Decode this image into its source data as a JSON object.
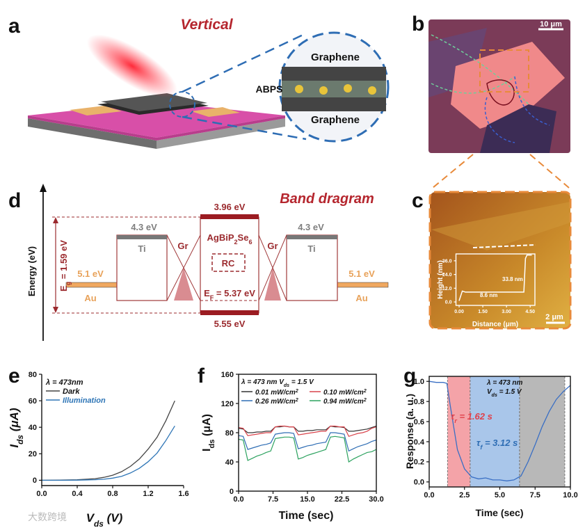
{
  "labels": [
    "a",
    "b",
    "c",
    "d",
    "e",
    "f",
    "g"
  ],
  "panel_a": {
    "title": "Vertical",
    "top_layer": "Graphene",
    "middle_layer": "ABPS",
    "bottom_layer": "Graphene"
  },
  "panel_b": {
    "scale_bar": "10 μm"
  },
  "panel_c": {
    "scale_bar": "2 μm"
  },
  "band_diagram": {
    "title": "Band dragram",
    "y_label": "Energy (eV)",
    "gap": [
      "E",
      {
        "sub": "g"
      },
      " = 1.59 eV"
    ],
    "cb": "3.96 eV",
    "vb": "5.55 eV",
    "material": [
      "AgBiP",
      {
        "sub": "2"
      },
      "Se",
      {
        "sub": "6"
      }
    ],
    "rc": "RC",
    "fermi": [
      "E",
      {
        "sub": "F"
      },
      " = 5.37 eV"
    ],
    "ti_level": "4.3 eV",
    "ti": "Ti",
    "gr": "Gr",
    "au_level": "5.1 eV",
    "au": "Au"
  },
  "watermark": "大数跨境",
  "chart_data": [
    {
      "type": "line",
      "x_label": "Distance (μm)",
      "y_label": "Height (nm)",
      "x": [
        0,
        0.2,
        0.4,
        1.5,
        3.0,
        4.1,
        4.2,
        4.3,
        4.6
      ],
      "series": [
        {
          "color": "#ffffff",
          "values": [
            1,
            9.5,
            8.6,
            8.6,
            8.6,
            8.6,
            38,
            41,
            41
          ]
        }
      ],
      "xlim": [
        -0.2,
        4.8
      ],
      "xticks": [
        {
          "value": 0,
          "label": "0.00"
        },
        {
          "value": 1.5,
          "label": "1.50"
        },
        {
          "value": 3,
          "label": "3.00"
        },
        {
          "value": 4.5,
          "label": "4.50"
        }
      ],
      "ylim": [
        -3,
        42
      ],
      "yticks": [
        {
          "value": 0,
          "label": "0.0"
        },
        {
          "value": 12,
          "label": "12.0"
        },
        {
          "value": 24,
          "label": "24.0"
        },
        {
          "value": 36,
          "label": "36.0"
        }
      ],
      "annotations": [
        "33.8 nm",
        "8.6 nm"
      ]
    },
    {
      "type": "line",
      "x_label": [
        "V",
        {
          "sub": "ds"
        },
        " (V)"
      ],
      "y_label": [
        "I",
        {
          "sub": "ds"
        },
        " (μA)"
      ],
      "annotation": "λ = 473nm",
      "x": [
        0,
        0.2,
        0.4,
        0.6,
        0.7,
        0.8,
        0.9,
        1.0,
        1.1,
        1.2,
        1.3,
        1.4,
        1.5
      ],
      "series": [
        {
          "name": "Dark",
          "color": "#444444",
          "values": [
            0,
            0.1,
            0.4,
            1.2,
            2.2,
            3.8,
            6.5,
            10.5,
            16,
            23.5,
            32.5,
            45,
            60
          ]
        },
        {
          "name": "Illumination",
          "color": "#2e75b6",
          "values": [
            0,
            0,
            0.1,
            0.4,
            0.8,
            1.6,
            3,
            5.5,
            9,
            14,
            20.5,
            30,
            41
          ]
        }
      ],
      "xlim": [
        0,
        1.6
      ],
      "xticks": [
        {
          "value": 0,
          "label": "0.0"
        },
        {
          "value": 0.4,
          "label": "0.4"
        },
        {
          "value": 0.8,
          "label": "0.8"
        },
        {
          "value": 1.2,
          "label": "1.2"
        },
        {
          "value": 1.6,
          "label": "1.6"
        }
      ],
      "ylim": [
        -4,
        80
      ],
      "yticks": [
        0,
        20,
        40,
        60,
        80
      ]
    },
    {
      "type": "line",
      "x_label": "Time (sec)",
      "y_label": [
        "I",
        {
          "sub": "ds"
        },
        " (μA)"
      ],
      "annotation": [
        "λ = 473 nm V",
        {
          "sub": "ds"
        },
        " = 1.5 V"
      ],
      "x": [
        0,
        1,
        2,
        3,
        4,
        5,
        6,
        7,
        8,
        9,
        10,
        11,
        12,
        13,
        14,
        15,
        16,
        17,
        18,
        19,
        20,
        21,
        22,
        23,
        24,
        25,
        26,
        27,
        28,
        29,
        30
      ],
      "series": [
        {
          "name": [
            "0.01 mW/cm",
            {
              "sup": "2"
            }
          ],
          "color": "#333333",
          "values": [
            86,
            85,
            80,
            80,
            81,
            81,
            82,
            82,
            88,
            88,
            89,
            88,
            88,
            82,
            82,
            83,
            83,
            84,
            84,
            84,
            89,
            88,
            88,
            87,
            82,
            82,
            83,
            84,
            85,
            87,
            89
          ]
        },
        {
          "name": [
            "0.10 mW/cm",
            {
              "sup": "2"
            }
          ],
          "color": "#d9434b",
          "values": [
            87,
            86,
            76,
            77,
            78,
            79,
            80,
            80,
            88,
            89,
            89,
            88,
            88,
            77,
            78,
            79,
            80,
            81,
            82,
            82,
            89,
            89,
            88,
            88,
            75,
            77,
            79,
            80,
            82,
            86,
            88
          ]
        },
        {
          "name": [
            "0.26 mW/cm",
            {
              "sup": "2"
            }
          ],
          "color": "#2e6db4",
          "values": [
            76,
            75,
            57,
            59,
            61,
            63,
            64,
            66,
            78,
            79,
            80,
            80,
            79,
            58,
            60,
            62,
            63,
            65,
            66,
            67,
            80,
            80,
            79,
            78,
            55,
            58,
            61,
            63,
            65,
            68,
            70
          ]
        },
        {
          "name": [
            "0.94 mW/cm",
            {
              "sup": "2"
            }
          ],
          "color": "#2ca25f",
          "values": [
            71,
            70,
            42,
            45,
            48,
            50,
            53,
            55,
            72,
            73,
            74,
            74,
            73,
            44,
            46,
            49,
            51,
            53,
            55,
            57,
            74,
            75,
            74,
            73,
            40,
            44,
            47,
            50,
            53,
            54,
            57
          ]
        }
      ],
      "xlim": [
        0,
        30
      ],
      "xticks": [
        {
          "value": 0,
          "label": "0.0"
        },
        7.5,
        {
          "value": 15,
          "label": "15.0"
        },
        22.5,
        {
          "value": 30,
          "label": "30.0"
        }
      ],
      "ylim": [
        0,
        160
      ],
      "yticks": [
        0,
        40,
        80,
        120,
        160
      ]
    },
    {
      "type": "line",
      "x_label": "Time (sec)",
      "y_label": "Response (a. u.)",
      "annotations": [
        "λ = 473 nm",
        [
          "V",
          {
            "sub": "ds"
          },
          " = 1.5 V"
        ],
        [
          "τ",
          {
            "sub": "r"
          },
          " = 1.62 s"
        ],
        [
          "τ",
          {
            "sub": "f"
          },
          " = 3.12 s"
        ]
      ],
      "regions": [
        {
          "x": [
            1.3,
            2.9
          ],
          "color": "#f4a3a8"
        },
        {
          "x": [
            2.9,
            6.4
          ],
          "color": "#a9c6ea"
        },
        {
          "x": [
            6.4,
            9.6
          ],
          "color": "#b8b8b8"
        }
      ],
      "x": [
        0,
        0.5,
        1.0,
        1.25,
        1.5,
        2.0,
        2.5,
        3.0,
        3.5,
        4.0,
        4.5,
        5.0,
        5.5,
        6.0,
        6.5,
        7.0,
        7.5,
        8.0,
        8.5,
        9.0,
        9.5,
        10.0
      ],
      "series": [
        {
          "color": "#3a6fc4",
          "values": [
            1.0,
            0.99,
            0.99,
            0.98,
            0.75,
            0.32,
            0.13,
            0.05,
            0.03,
            0.04,
            0.02,
            0.02,
            0.01,
            0.02,
            0.06,
            0.2,
            0.37,
            0.55,
            0.7,
            0.82,
            0.9,
            0.96
          ]
        }
      ],
      "xlim": [
        0,
        10
      ],
      "xticks": [
        {
          "value": 0,
          "label": "0.0"
        },
        2.5,
        {
          "value": 5,
          "label": "5.0"
        },
        7.5,
        {
          "value": 10,
          "label": "10.0"
        }
      ],
      "ylim": [
        -0.05,
        1.05
      ],
      "yticks": [
        {
          "value": 0,
          "label": "0.0"
        },
        0.2,
        0.4,
        0.6,
        0.8,
        {
          "value": 1,
          "label": "1.0"
        }
      ]
    }
  ]
}
